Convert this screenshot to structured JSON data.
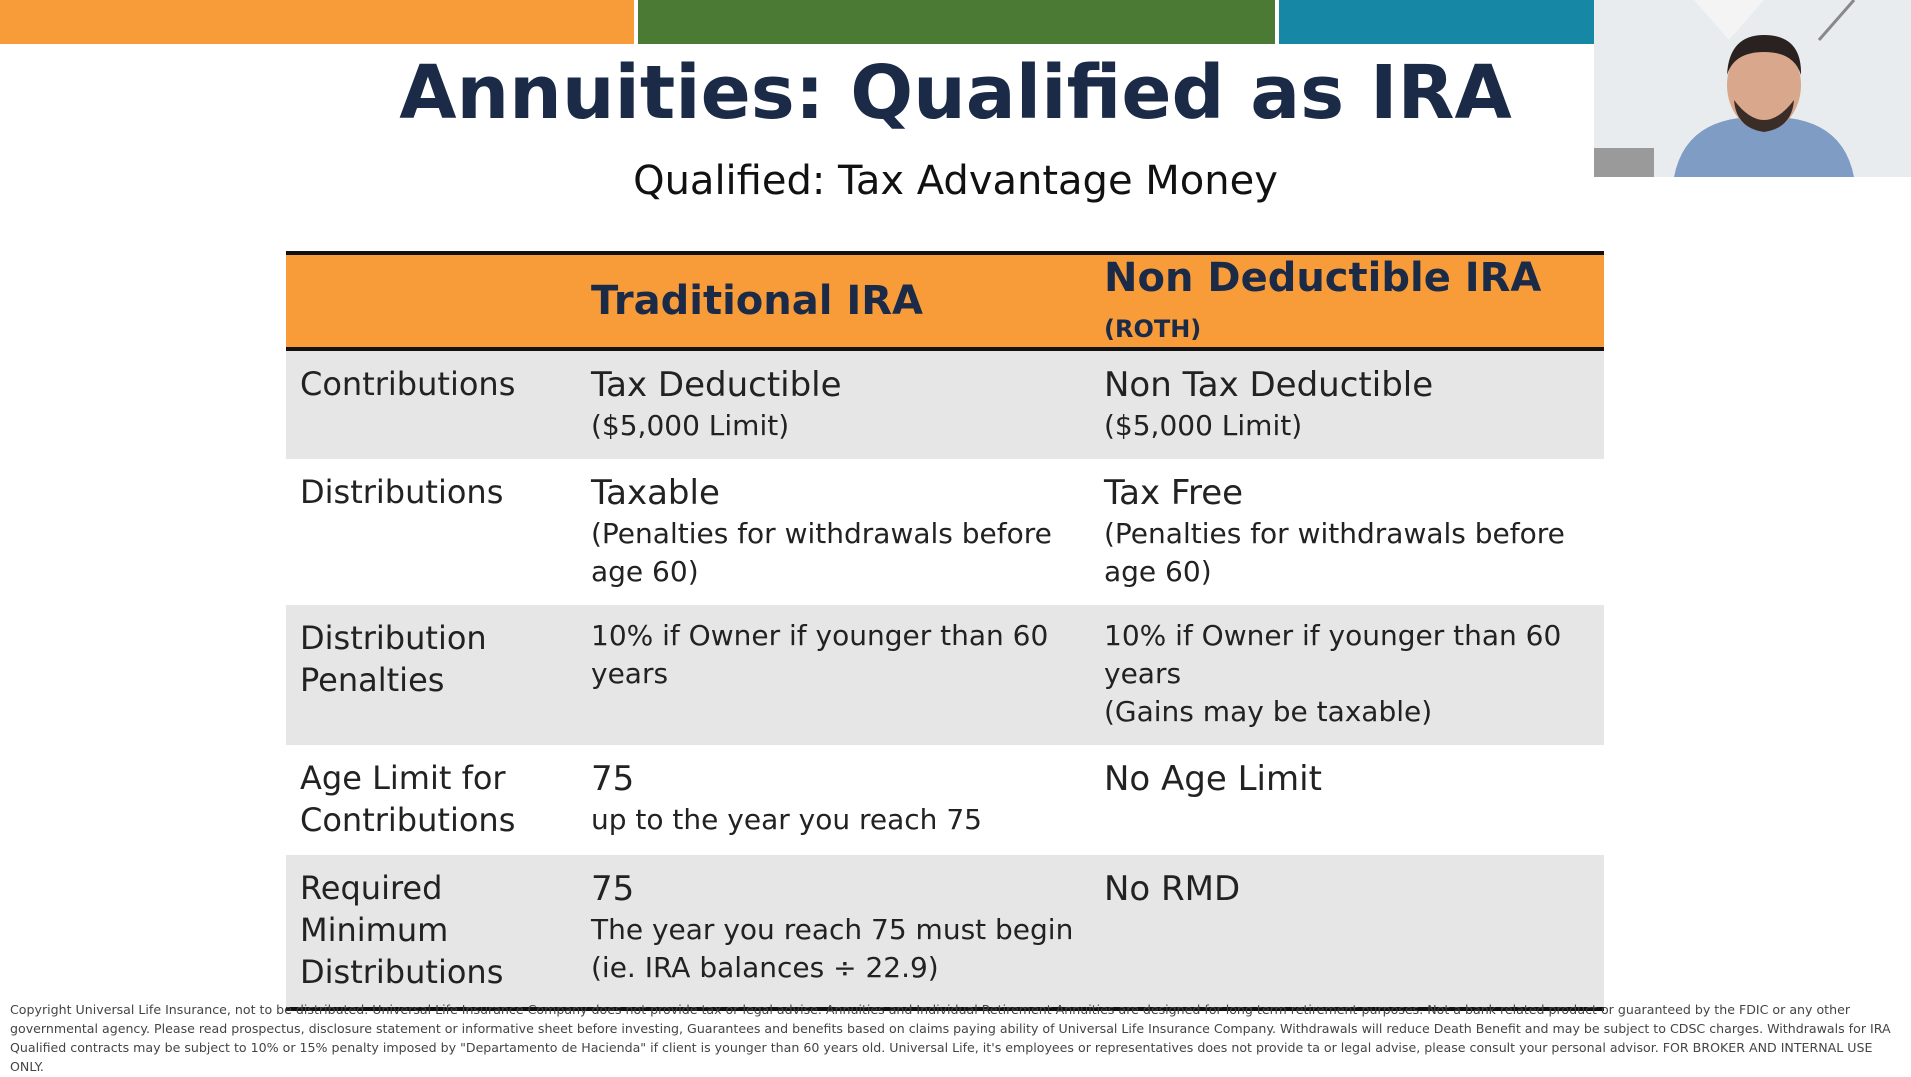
{
  "header": {
    "title": "Annuities: Qualified as IRA",
    "subtitle": "Qualified: Tax Advantage Money"
  },
  "table": {
    "columns": [
      {
        "name": "Traditional IRA"
      },
      {
        "name": "Non Deductible IRA",
        "suffix": "(ROTH)"
      }
    ],
    "rows": [
      {
        "label": "Contributions",
        "cells": [
          {
            "main": "Tax Deductible",
            "notes": [
              "($5,000 Limit)"
            ]
          },
          {
            "main": "Non Tax Deductible",
            "notes": [
              "($5,000 Limit)"
            ]
          }
        ]
      },
      {
        "label": "Distributions",
        "cells": [
          {
            "main": "Taxable",
            "notes": [
              "(Penalties for withdrawals before age 60)"
            ]
          },
          {
            "main": "Tax Free",
            "notes": [
              "(Penalties for withdrawals before age 60)"
            ]
          }
        ]
      },
      {
        "label": "Distribution Penalties",
        "cells": [
          {
            "notes": [
              "10% if Owner if younger than 60 years"
            ]
          },
          {
            "notes": [
              "10% if Owner if younger than 60 years",
              "(Gains may be taxable)"
            ]
          }
        ]
      },
      {
        "label": "Age Limit for Contributions",
        "cells": [
          {
            "main": "75",
            "notes": [
              "up to the year you reach 75"
            ]
          },
          {
            "main": "No Age Limit",
            "notes": []
          }
        ]
      },
      {
        "label": "Required Minimum Distributions",
        "cells": [
          {
            "main": "75",
            "notes": [
              "The year you reach 75 must begin (ie. IRA balances ÷ 22.9)"
            ]
          },
          {
            "main": "No RMD",
            "notes": []
          }
        ]
      }
    ]
  },
  "footer": "Copyright Universal Life Insurance, not to be distributed. Universal Life Insurance Company does not provide tax or legal advise. Annuities and Individual  Retirement Annuities are designed for long term retirement purposes. Not a bank related product or guaranteed by the FDIC or any other governmental agency. Please read prospectus, disclosure statement or informative sheet before investing, Guarantees and benefits based on claims paying ability of Universal Life Insurance Company. Withdrawals will reduce Death Benefit and may be subject to CDSC charges. Withdrawals for IRA Qualified contracts may be subject to 10% or 15% penalty imposed by \"Departamento de Hacienda\" if client is younger than 60 years old. Universal Life, it's employees or representatives does not provide ta or legal advise, please consult your personal advisor. FOR BROKER AND INTERNAL USE ONLY."
}
